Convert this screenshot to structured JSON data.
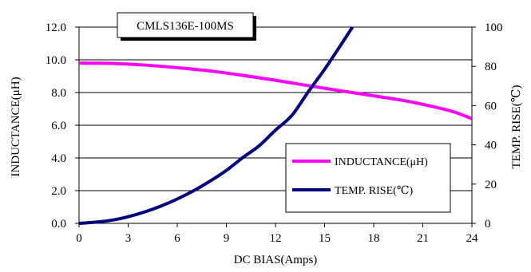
{
  "chart_data": {
    "type": "line",
    "title": "CMLS136E-100MS",
    "xlabel": "DC BIAS(Amps)",
    "ylabel": "INDUCTANCE(μH)",
    "y2label": "TEMP. RISE(℃)",
    "xlim": [
      0,
      24
    ],
    "ylim": [
      0,
      12
    ],
    "y2lim": [
      0,
      100
    ],
    "x_ticks": [
      "0",
      "3",
      "6",
      "9",
      "12",
      "15",
      "18",
      "21",
      "24"
    ],
    "y_ticks": [
      "0.0",
      "2.0",
      "4.0",
      "6.0",
      "8.0",
      "10.0",
      "12.0"
    ],
    "y2_ticks": [
      "0",
      "20",
      "40",
      "60",
      "80",
      "100"
    ],
    "grid": "horizontal",
    "legend_position": "lower-right",
    "series": [
      {
        "name": "INDUCTANCE(μH)",
        "axis": "left",
        "color": "#ff00ff",
        "x": [
          0,
          2,
          4,
          6,
          8,
          10,
          12,
          14,
          16,
          18,
          20,
          22,
          23,
          24
        ],
        "y": [
          9.8,
          9.78,
          9.68,
          9.52,
          9.32,
          9.05,
          8.75,
          8.42,
          8.1,
          7.8,
          7.48,
          7.05,
          6.78,
          6.4
        ]
      },
      {
        "name": "TEMP. RISE(℃)",
        "axis": "right",
        "color": "#000080",
        "x": [
          0,
          1,
          2,
          3,
          4,
          5,
          6,
          7,
          8,
          9,
          10,
          11,
          12,
          13,
          14,
          15,
          16,
          16.7
        ],
        "y": [
          0,
          0.6,
          1.6,
          3.4,
          5.8,
          8.8,
          12.4,
          16.6,
          21.5,
          27,
          33.5,
          39.5,
          47.5,
          55,
          67,
          78.5,
          91,
          100
        ]
      }
    ]
  }
}
